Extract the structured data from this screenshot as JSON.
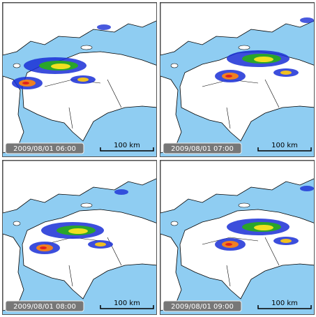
{
  "panels": [
    {
      "timestamp": "2009/08/01 06:00",
      "scale_label": "100 km"
    },
    {
      "timestamp": "2009/08/01 07:00",
      "scale_label": "100 km"
    },
    {
      "timestamp": "2009/08/01 08:00",
      "scale_label": "100 km"
    },
    {
      "timestamp": "2009/08/01 09:00",
      "scale_label": "100 km"
    }
  ]
}
